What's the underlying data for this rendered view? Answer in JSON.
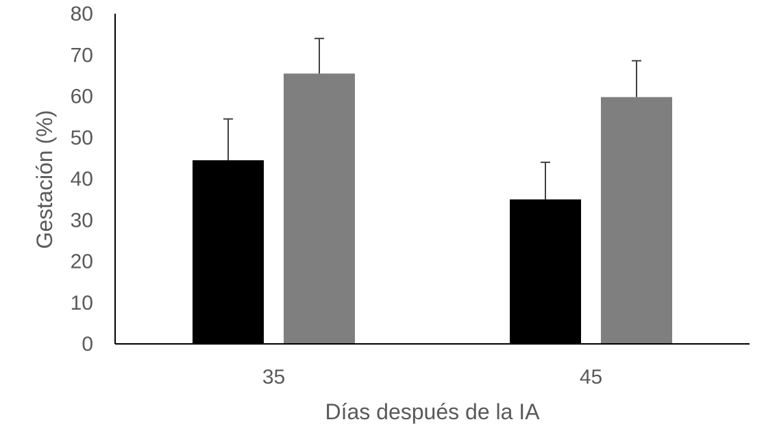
{
  "chart_data": {
    "type": "bar",
    "title": "",
    "xlabel": "Días después de la IA",
    "ylabel": "Gestación (%)",
    "categories": [
      "35",
      "45"
    ],
    "ylim": [
      0,
      80
    ],
    "yticks": [
      "0",
      "10",
      "20",
      "30",
      "40",
      "50",
      "60",
      "70",
      "80"
    ],
    "grid": false,
    "legend": "none",
    "series": [
      {
        "values": [
          44.5,
          35.0
        ],
        "errors": [
          10.0,
          9.0
        ],
        "color": "#000000"
      },
      {
        "values": [
          65.5,
          59.8
        ],
        "errors": [
          8.5,
          8.8
        ],
        "color": "#7f7f7f"
      }
    ]
  }
}
